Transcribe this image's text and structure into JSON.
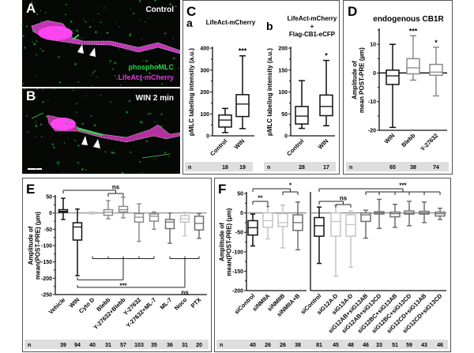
{
  "colors": {
    "black": "#111111",
    "gray": "#8a8a8a",
    "darkgray": "#6e6e6e",
    "lightgray": "#c4c4c4",
    "nbar": "#dedede",
    "green": "#2fd24a",
    "magenta": "#e23ce0"
  },
  "images": {
    "A": {
      "letter": "A",
      "label": "Control",
      "legend": [
        "phosphoMLC",
        "LifeAct-mCherry"
      ]
    },
    "B": {
      "letter": "B",
      "label": "WIN 2 min"
    }
  },
  "chart_data": [
    {
      "id": "Ca",
      "panel_letter": "C",
      "sub_letter": "a",
      "type": "boxplot",
      "title": [
        "LifeAct-mCherry"
      ],
      "ylabel": "pMLC labeling intensity (a.u.)",
      "ylim": [
        0,
        400
      ],
      "yticks": [
        0,
        100,
        200,
        300,
        400
      ],
      "categories": [
        "Control",
        "WIN"
      ],
      "boxes": [
        {
          "min": 15,
          "q1": 40,
          "median": 72,
          "q3": 95,
          "max": 125,
          "color": "black"
        },
        {
          "min": 33,
          "q1": 88,
          "median": 145,
          "q3": 188,
          "max": 365,
          "color": "black"
        }
      ],
      "significance": [
        {
          "text": "",
          "cat": 0
        },
        {
          "text": "***",
          "cat": 1
        }
      ],
      "n_label": "n",
      "n": [
        18,
        19
      ]
    },
    {
      "id": "Cb",
      "sub_letter": "b",
      "type": "boxplot",
      "title": [
        "LifeAct-mCherry",
        "+",
        "Flag-CB1-eCFP"
      ],
      "ylabel": "pMLC labeling intensity (a.u.)",
      "ylim": [
        0,
        200
      ],
      "yticks": [
        0,
        50,
        100,
        150,
        200
      ],
      "categories": [
        "Control",
        "WIN"
      ],
      "boxes": [
        {
          "min": 17,
          "q1": 27,
          "median": 45,
          "q3": 67,
          "max": 126,
          "color": "black"
        },
        {
          "min": 23,
          "q1": 46,
          "median": 67,
          "q3": 93,
          "max": 172,
          "color": "black"
        }
      ],
      "significance": [
        {
          "text": "",
          "cat": 0
        },
        {
          "text": "*",
          "cat": 1
        }
      ],
      "n_label": "n",
      "n": [
        28,
        17
      ]
    },
    {
      "id": "D",
      "panel_letter": "D",
      "type": "boxplot",
      "title": [
        "endogenous CB1R"
      ],
      "ylabel": "Amplitude of mean POST-PRE (µm)",
      "ylim": [
        -20,
        15
      ],
      "yticks": [
        -20,
        -10,
        0,
        10
      ],
      "categories": [
        "WIN",
        "Blebb",
        "Y-27632"
      ],
      "boxes": [
        {
          "min": -19,
          "q1": -4,
          "median": -1,
          "q3": 1,
          "max": 10,
          "color": "black"
        },
        {
          "min": -2.5,
          "q1": -0.3,
          "median": 1.8,
          "q3": 5,
          "max": 13,
          "color": "gray"
        },
        {
          "min": -8,
          "q1": -0.8,
          "median": 0.3,
          "q3": 3,
          "max": 9,
          "color": "gray"
        }
      ],
      "significance": [
        {
          "text": "",
          "cat": 0
        },
        {
          "text": "***",
          "cat": 1
        },
        {
          "text": "*",
          "cat": 2
        }
      ],
      "zero_line": true,
      "n_label": "n",
      "n": [
        65,
        38,
        74
      ]
    },
    {
      "id": "E",
      "panel_letter": "E",
      "type": "boxplot",
      "title": [],
      "ylabel": "Amplitude of mean(POST-PRE) (µm)",
      "ylim": [
        -250,
        50
      ],
      "yticks": [
        -250,
        -200,
        -150,
        -100,
        -50,
        0,
        50
      ],
      "categories": [
        "Vehicle",
        "WIN",
        "Cyto D",
        "Blebb",
        "Y-27632+Blebb",
        "Y-27632",
        "Y-27632+ML-7",
        "ML-7",
        "Noco",
        "PTX"
      ],
      "boxes": [
        {
          "min": -20,
          "q1": 2,
          "median": 5,
          "q3": 10,
          "max": 45,
          "color": "black"
        },
        {
          "min": -192,
          "q1": -83,
          "median": -43,
          "q3": -30,
          "max": 12,
          "color": "black"
        },
        {
          "min": -3,
          "q1": -1,
          "median": 1,
          "q3": 2,
          "max": 3,
          "color": "lightgray"
        },
        {
          "min": -18,
          "q1": -7,
          "median": 2,
          "q3": 10,
          "max": 38,
          "color": "gray"
        },
        {
          "min": -15,
          "q1": 3,
          "median": 10,
          "q3": 20,
          "max": 48,
          "color": "gray"
        },
        {
          "min": -87,
          "q1": -28,
          "median": -13,
          "q3": -2,
          "max": 28,
          "color": "gray"
        },
        {
          "min": -50,
          "q1": -25,
          "median": -10,
          "q3": -3,
          "max": 3,
          "color": "gray"
        },
        {
          "min": -93,
          "q1": -48,
          "median": -28,
          "q3": -20,
          "max": 0,
          "color": "darkgray"
        },
        {
          "min": -70,
          "q1": -28,
          "median": -18,
          "q3": -8,
          "max": 2,
          "color": "lightgray"
        },
        {
          "min": -78,
          "q1": -52,
          "median": -32,
          "q3": -10,
          "max": -2,
          "color": "darkgray"
        }
      ],
      "brackets": [
        {
          "text": "ns",
          "from": "Vehicle",
          "to": [
            "Blebb",
            "Y-27632+Blebb"
          ]
        },
        {
          "text": "***",
          "from": "WIN",
          "to": [
            "Cyto D",
            "Blebb",
            "Y-27632+Blebb",
            "Y-27632",
            "Y-27632+ML-7"
          ]
        },
        {
          "text": "ns",
          "from": "WIN",
          "to": [
            "ML-7",
            "Noco",
            "PTX"
          ]
        }
      ],
      "zero_line": true,
      "n_label": "n",
      "n": [
        39,
        94,
        40,
        31,
        57,
        103,
        35,
        36,
        31,
        20
      ]
    },
    {
      "id": "F1",
      "panel_letter": "F",
      "type": "boxplot",
      "title": [],
      "ylabel": "Amplitude of mean(POST-PRE) (µm)",
      "ylim": [
        -200,
        50
      ],
      "yticks": [
        -200,
        -150,
        -100,
        -50,
        0,
        50
      ],
      "categories": [
        "siControl",
        "siNMIIA",
        "siNMIIB",
        "siNMIIA+B"
      ],
      "boxes": [
        {
          "min": -85,
          "q1": -57,
          "median": -38,
          "q3": -20,
          "max": -3,
          "color": "black"
        },
        {
          "min": -67,
          "q1": -37,
          "median": -20,
          "q3": 0,
          "max": 17,
          "color": "lightgray"
        },
        {
          "min": -90,
          "q1": -35,
          "median": -25,
          "q3": -2,
          "max": 20,
          "color": "lightgray"
        },
        {
          "min": -95,
          "q1": -45,
          "median": -25,
          "q3": -5,
          "max": 28,
          "color": "darkgray"
        }
      ],
      "brackets": [
        {
          "text": "**",
          "from": "siControl",
          "to": [
            "siNMIIA"
          ]
        },
        {
          "text": "*",
          "from": "siControl",
          "to": [
            "siNMIIB",
            "siNMIIA+B"
          ]
        }
      ],
      "zero_line": true,
      "n_label": "n",
      "n": [
        40,
        26,
        26,
        38
      ]
    },
    {
      "id": "F2",
      "type": "boxplot",
      "title": [],
      "ylim": [
        -200,
        50
      ],
      "yticks": [],
      "categories": [
        "siControl",
        "siG12A-D",
        "siG13A-D",
        "siG12AB+siG13AB",
        "siG12AB+siG13CD",
        "siG12BC+siG13AB",
        "siG12BC+siG13CD",
        "siG12CD+siG13AB",
        "siG12CD+siG13CD"
      ],
      "boxes": [
        {
          "min": -130,
          "q1": -60,
          "median": -33,
          "q3": -12,
          "max": 15,
          "color": "black"
        },
        {
          "min": -163,
          "q1": -60,
          "median": -22,
          "q3": 0,
          "max": 20,
          "color": "lightgray"
        },
        {
          "min": -140,
          "q1": -60,
          "median": -30,
          "q3": -5,
          "max": 5,
          "color": "lightgray"
        },
        {
          "min": -65,
          "q1": -22,
          "median": -5,
          "q3": 0,
          "max": 7,
          "color": "darkgray"
        },
        {
          "min": -40,
          "q1": -3,
          "median": 0,
          "q3": 3,
          "max": 35,
          "color": "darkgray"
        },
        {
          "min": -37,
          "q1": -10,
          "median": -2,
          "q3": 2,
          "max": 22,
          "color": "darkgray"
        },
        {
          "min": -33,
          "q1": -3,
          "median": 0,
          "q3": 5,
          "max": 30,
          "color": "darkgray"
        },
        {
          "min": -25,
          "q1": -3,
          "median": 0,
          "q3": 4,
          "max": 28,
          "color": "darkgray"
        },
        {
          "min": -17,
          "q1": -8,
          "median": -2,
          "q3": 2,
          "max": 12,
          "color": "darkgray"
        }
      ],
      "brackets": [
        {
          "text": "ns",
          "from": "siControl",
          "to": [
            "siG12A-D",
            "siG13A-D"
          ]
        },
        {
          "text": "***",
          "from": "siControl",
          "to": [
            "siG12AB+siG13AB",
            "siG12AB+siG13CD",
            "siG12BC+siG13AB",
            "siG12BC+siG13CD",
            "siG12CD+siG13AB",
            "siG12CD+siG13CD"
          ]
        }
      ],
      "zero_line": true,
      "n": [
        81,
        45,
        48,
        46,
        33,
        51,
        59,
        43,
        46
      ]
    }
  ]
}
